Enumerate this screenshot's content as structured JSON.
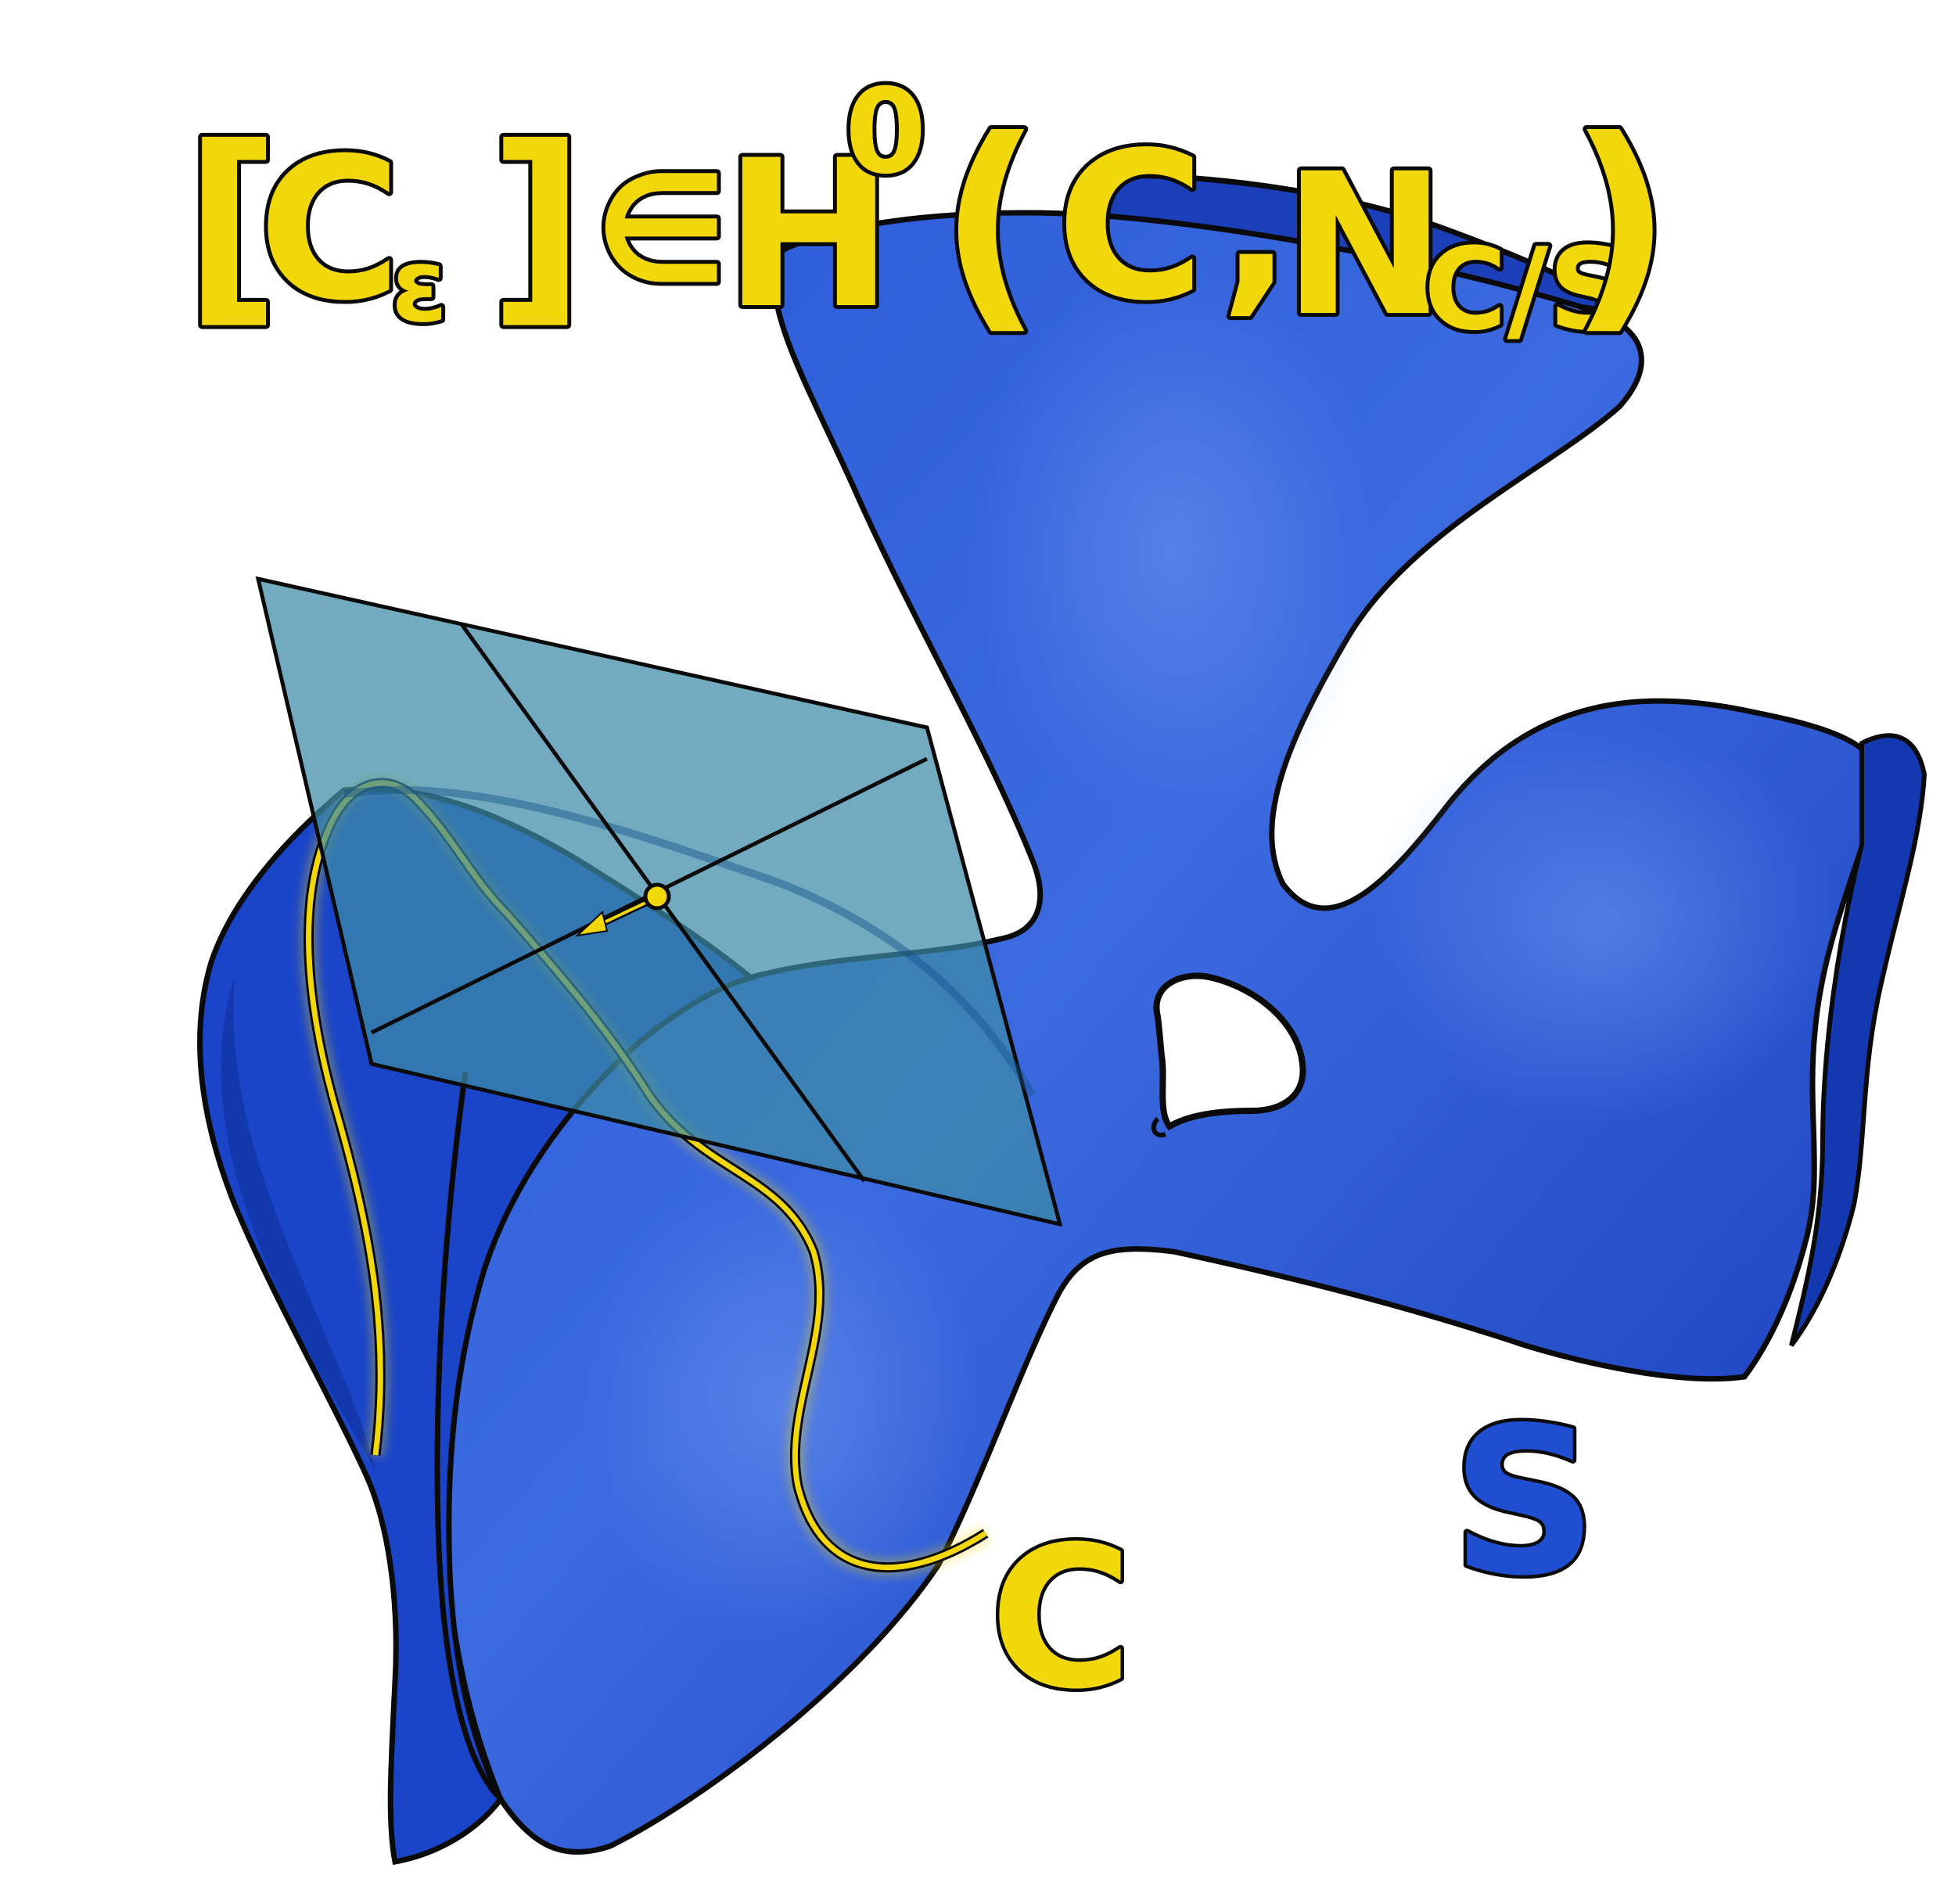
{
  "formula": {
    "bracket_open": "[",
    "c": "C",
    "sub_epsilon": "ε",
    "bracket_close": "]",
    "in": "∈",
    "h": "H",
    "sup_zero": "0",
    "paren_open": "(",
    "c2": "C",
    "comma": ",",
    "n": "N",
    "sub_cs": "C/S",
    "paren_close": ")"
  },
  "labels": {
    "curve": "C",
    "surface": "S"
  },
  "colors": {
    "surface": "#1f4fd0",
    "surface_dark": "#0f33a8",
    "surface_light": "#4a78e6",
    "plane": "#3b8aa6",
    "yellow": "#f2d80b",
    "outline": "#0a0a0a"
  },
  "icons": {
    "tangent-vector": "arrow-icon",
    "point": "dot-icon"
  }
}
